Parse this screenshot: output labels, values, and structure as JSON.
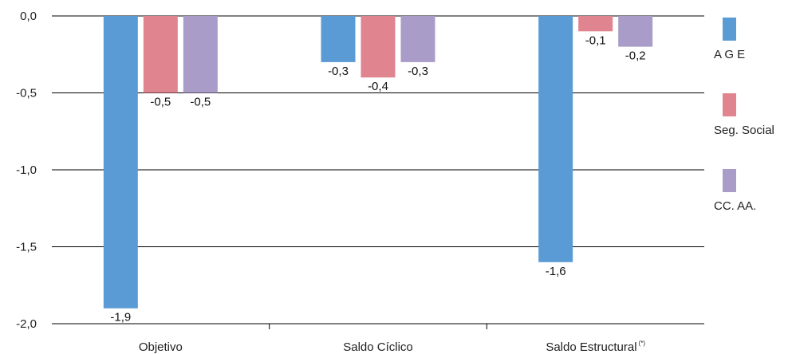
{
  "chart_data": {
    "type": "bar",
    "categories": [
      "Objetivo",
      "Saldo Cíclico",
      "Saldo Estructural"
    ],
    "category_superscripts": [
      "",
      "",
      "(*)"
    ],
    "series": [
      {
        "name": "A G E",
        "values": [
          -1.9,
          -0.3,
          -1.6
        ],
        "color": "#5b9bd5"
      },
      {
        "name": "Seg. Social",
        "values": [
          -0.5,
          -0.4,
          -0.1
        ],
        "color": "#e0848f"
      },
      {
        "name": "CC. AA.",
        "values": [
          -0.5,
          -0.3,
          -0.2
        ],
        "color": "#a99cc8"
      }
    ],
    "value_labels": [
      [
        "-1,9",
        "-0,3",
        "-1,6"
      ],
      [
        "-0,5",
        "-0,4",
        "-0,1"
      ],
      [
        "-0,5",
        "-0,3",
        "-0,2"
      ]
    ],
    "ylim": [
      -2.0,
      0.0
    ],
    "yticks": [
      0.0,
      -0.5,
      -1.0,
      -1.5,
      -2.0
    ],
    "ytick_labels": [
      "0,0",
      "-0,5",
      "-1,0",
      "-1,5",
      "-2,0"
    ],
    "grid": true,
    "legend_position": "right",
    "title": "",
    "xlabel": "",
    "ylabel": ""
  }
}
